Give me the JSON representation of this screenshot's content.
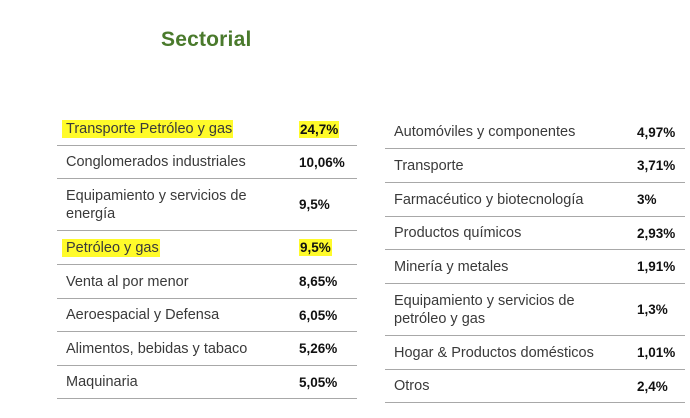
{
  "title": "Sectorial",
  "left_table": [
    {
      "name": "Transporte Petróleo y gas",
      "value": "24,7%",
      "highlighted": true
    },
    {
      "name": "Conglomerados industriales",
      "value": "10,06%",
      "highlighted": false
    },
    {
      "name": "Equipamiento y servicios de energía",
      "value": "9,5%",
      "highlighted": false
    },
    {
      "name": "Petróleo y gas",
      "value": "9,5%",
      "highlighted": true
    },
    {
      "name": "Venta al por menor",
      "value": "8,65%",
      "highlighted": false
    },
    {
      "name": "Aeroespacial y Defensa",
      "value": "6,05%",
      "highlighted": false
    },
    {
      "name": "Alimentos, bebidas y tabaco",
      "value": "5,26%",
      "highlighted": false
    },
    {
      "name": "Maquinaria",
      "value": "5,05%",
      "highlighted": false
    }
  ],
  "right_table": [
    {
      "name": "Automóviles y componentes",
      "value": "4,97%"
    },
    {
      "name": "Transporte",
      "value": "3,71%"
    },
    {
      "name": "Farmacéutico y biotecnología",
      "value": "3%"
    },
    {
      "name": "Productos químicos",
      "value": "2,93%"
    },
    {
      "name": "Minería y metales",
      "value": "1,91%"
    },
    {
      "name": "Equipamiento y servicios de petróleo y gas",
      "value": "1,3%"
    },
    {
      "name": "Hogar & Productos domésticos",
      "value": "1,01%"
    },
    {
      "name": "Otros",
      "value": "2,4%"
    }
  ],
  "colors": {
    "title": "#4a7a2c",
    "highlight": "#fffb2a",
    "divider": "#a8a8a8"
  }
}
